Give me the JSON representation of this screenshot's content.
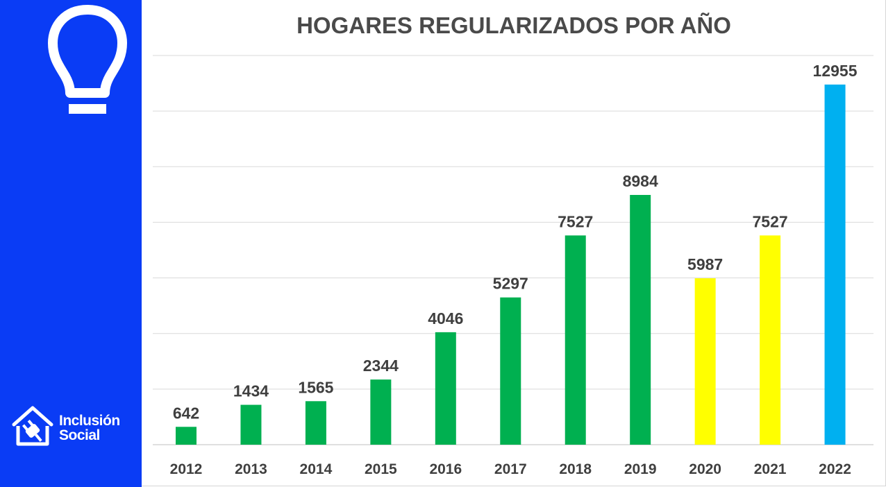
{
  "brand": {
    "line1": "Inclusión",
    "line2": "Social",
    "sidebar_color": "#0a3cf5",
    "icons": [
      "lightbulb-icon",
      "house-plug-logo-icon"
    ]
  },
  "chart_data": {
    "type": "bar",
    "title": "HOGARES REGULARIZADOS POR AÑO",
    "xlabel": "",
    "ylabel": "",
    "categories": [
      "2012",
      "2013",
      "2014",
      "2015",
      "2016",
      "2017",
      "2018",
      "2019",
      "2020",
      "2021",
      "2022"
    ],
    "values": [
      642,
      1434,
      1565,
      2344,
      4046,
      5297,
      7527,
      8984,
      5987,
      7527,
      12955
    ],
    "bar_colors": [
      "#00b050",
      "#00b050",
      "#00b050",
      "#00b050",
      "#00b050",
      "#00b050",
      "#00b050",
      "#00b050",
      "#ffff00",
      "#ffff00",
      "#00b0f0"
    ],
    "ylim": [
      0,
      14000
    ],
    "grid": true,
    "legend": "none",
    "data_labels": true
  }
}
